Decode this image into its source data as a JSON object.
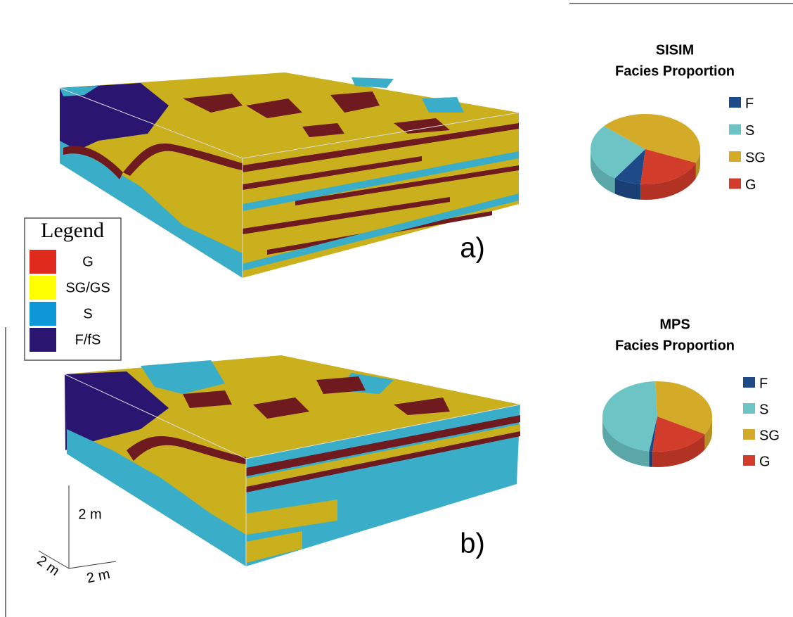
{
  "figure": {
    "label_a": "a)",
    "label_b": "b)",
    "scale_vertical": "2 m",
    "scale_left": "2 m",
    "scale_right": "2 m"
  },
  "legend": {
    "title": "Legend",
    "items": [
      {
        "label": "G",
        "color": "#e02a1e"
      },
      {
        "label": "SG/GS",
        "color": "#ffff00"
      },
      {
        "label": "S",
        "color": "#0d96d8"
      },
      {
        "label": "F/fS",
        "color": "#2a1570"
      }
    ]
  },
  "chart_data": [
    {
      "type": "pie",
      "title": "SISIM",
      "subtitle": "Facies Proportion",
      "categories": [
        "F",
        "S",
        "SG",
        "G"
      ],
      "values": [
        8,
        27,
        45,
        20
      ],
      "colors": [
        "#1f4a8a",
        "#6cc4c4",
        "#d4ab28",
        "#d23c2a"
      ]
    },
    {
      "type": "pie",
      "title": "MPS",
      "subtitle": "Facies Proportion",
      "categories": [
        "F",
        "S",
        "SG",
        "G"
      ],
      "values": [
        1,
        47,
        34,
        18
      ],
      "colors": [
        "#1f4a8a",
        "#6cc4c4",
        "#d4ab28",
        "#d23c2a"
      ]
    }
  ]
}
